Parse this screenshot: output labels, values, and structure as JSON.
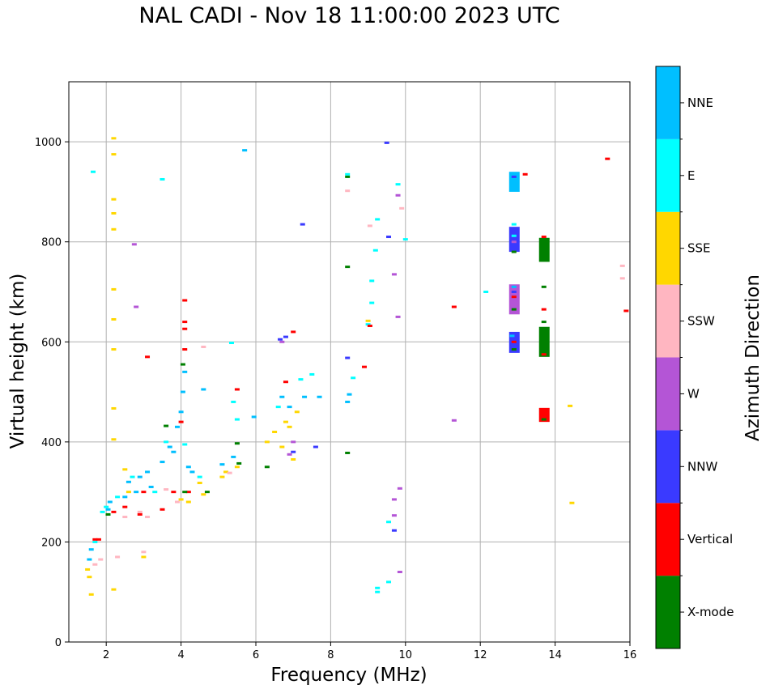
{
  "chart_data": {
    "type": "scatter",
    "title": "NAL CADI - Nov 18 11:00:00 2023 UTC",
    "xlabel": "Frequency (MHz)",
    "ylabel": "Virtual height (km)",
    "xlim": [
      1,
      16
    ],
    "ylim": [
      0,
      1120
    ],
    "xticks": [
      2,
      4,
      6,
      8,
      10,
      12,
      14,
      16
    ],
    "yticks": [
      0,
      200,
      400,
      600,
      800,
      1000
    ],
    "grid": true,
    "colorbar": {
      "title": "Azimuth Direction",
      "categories": [
        {
          "name": "X-mode",
          "color": "#008000"
        },
        {
          "name": "Vertical",
          "color": "#ff0000"
        },
        {
          "name": "NNW",
          "color": "#3a3aff"
        },
        {
          "name": "W",
          "color": "#b455d6"
        },
        {
          "name": "SSW",
          "color": "#ffb6c1"
        },
        {
          "name": "SSE",
          "color": "#ffd700"
        },
        {
          "name": "E",
          "color": "#00ffff"
        },
        {
          "name": "NNE",
          "color": "#00bfff"
        }
      ]
    },
    "series": [
      {
        "name": "NNE",
        "points": [
          [
            1.55,
            165
          ],
          [
            1.6,
            185
          ],
          [
            2.05,
            265
          ],
          [
            2.1,
            280
          ],
          [
            2.5,
            290
          ],
          [
            2.6,
            320
          ],
          [
            2.8,
            300
          ],
          [
            2.9,
            330
          ],
          [
            3.1,
            340
          ],
          [
            3.2,
            310
          ],
          [
            3.5,
            360
          ],
          [
            3.7,
            390
          ],
          [
            3.8,
            380
          ],
          [
            3.9,
            430
          ],
          [
            4.0,
            460
          ],
          [
            4.05,
            500
          ],
          [
            4.1,
            540
          ],
          [
            4.2,
            350
          ],
          [
            4.3,
            340
          ],
          [
            4.6,
            505
          ],
          [
            5.1,
            355
          ],
          [
            5.4,
            370
          ],
          [
            5.7,
            983
          ],
          [
            5.95,
            450
          ],
          [
            6.7,
            490
          ],
          [
            6.9,
            470
          ],
          [
            7.3,
            490
          ],
          [
            7.7,
            490
          ],
          [
            8.45,
            480
          ],
          [
            8.5,
            495
          ],
          [
            12.9,
            920
          ],
          [
            12.9,
            906
          ],
          [
            12.9,
            710
          ],
          [
            12.85,
            612
          ]
        ]
      },
      {
        "name": "E",
        "points": [
          [
            1.65,
            940
          ],
          [
            1.7,
            200
          ],
          [
            1.9,
            260
          ],
          [
            2.0,
            270
          ],
          [
            2.3,
            290
          ],
          [
            2.7,
            330
          ],
          [
            3.3,
            300
          ],
          [
            3.5,
            925
          ],
          [
            3.6,
            400
          ],
          [
            4.1,
            395
          ],
          [
            4.5,
            330
          ],
          [
            5.35,
            598
          ],
          [
            5.4,
            480
          ],
          [
            5.5,
            445
          ],
          [
            6.6,
            470
          ],
          [
            7.2,
            525
          ],
          [
            7.5,
            535
          ],
          [
            8.45,
            935
          ],
          [
            8.6,
            528
          ],
          [
            9.0,
            635
          ],
          [
            9.1,
            722
          ],
          [
            9.1,
            678
          ],
          [
            9.2,
            783
          ],
          [
            9.25,
            845
          ],
          [
            9.25,
            108
          ],
          [
            9.25,
            100
          ],
          [
            9.55,
            240
          ],
          [
            9.55,
            120
          ],
          [
            9.8,
            915
          ],
          [
            10.0,
            805
          ],
          [
            12.15,
            700
          ],
          [
            12.9,
            835
          ],
          [
            12.9,
            812
          ]
        ]
      },
      {
        "name": "SSE",
        "points": [
          [
            1.5,
            145
          ],
          [
            1.55,
            130
          ],
          [
            1.6,
            95
          ],
          [
            2.2,
            1007
          ],
          [
            2.2,
            975
          ],
          [
            2.2,
            885
          ],
          [
            2.2,
            857
          ],
          [
            2.2,
            825
          ],
          [
            2.2,
            705
          ],
          [
            2.2,
            645
          ],
          [
            2.2,
            585
          ],
          [
            2.2,
            467
          ],
          [
            2.2,
            405
          ],
          [
            2.2,
            105
          ],
          [
            2.5,
            345
          ],
          [
            2.6,
            300
          ],
          [
            3.0,
            170
          ],
          [
            4.0,
            285
          ],
          [
            4.2,
            280
          ],
          [
            4.5,
            318
          ],
          [
            4.6,
            295
          ],
          [
            5.1,
            330
          ],
          [
            5.2,
            340
          ],
          [
            5.5,
            350
          ],
          [
            6.3,
            400
          ],
          [
            6.5,
            420
          ],
          [
            6.7,
            390
          ],
          [
            6.8,
            440
          ],
          [
            6.9,
            430
          ],
          [
            7.0,
            365
          ],
          [
            7.1,
            460
          ],
          [
            9.0,
            642
          ],
          [
            14.4,
            472
          ],
          [
            14.45,
            278
          ]
        ]
      },
      {
        "name": "SSW",
        "points": [
          [
            1.7,
            155
          ],
          [
            1.85,
            165
          ],
          [
            2.3,
            170
          ],
          [
            2.5,
            250
          ],
          [
            2.9,
            260
          ],
          [
            3.0,
            180
          ],
          [
            3.1,
            250
          ],
          [
            3.6,
            305
          ],
          [
            3.9,
            280
          ],
          [
            4.6,
            590
          ],
          [
            5.3,
            338
          ],
          [
            8.45,
            902
          ],
          [
            9.05,
            832
          ],
          [
            9.9,
            867
          ],
          [
            15.8,
            752
          ],
          [
            15.8,
            727
          ]
        ]
      },
      {
        "name": "W",
        "points": [
          [
            2.75,
            795
          ],
          [
            2.8,
            670
          ],
          [
            6.9,
            375
          ],
          [
            6.7,
            600
          ],
          [
            7.0,
            400
          ],
          [
            9.7,
            735
          ],
          [
            9.7,
            285
          ],
          [
            9.7,
            253
          ],
          [
            9.8,
            893
          ],
          [
            9.8,
            650
          ],
          [
            9.85,
            307
          ],
          [
            9.85,
            140
          ],
          [
            11.3,
            443
          ],
          [
            12.9,
            700
          ],
          [
            12.9,
            685
          ],
          [
            12.9,
            800
          ]
        ]
      },
      {
        "name": "NNW",
        "points": [
          [
            6.65,
            605
          ],
          [
            6.8,
            610
          ],
          [
            7.0,
            380
          ],
          [
            7.25,
            835
          ],
          [
            7.6,
            390
          ],
          [
            8.45,
            568
          ],
          [
            9.5,
            998
          ],
          [
            9.55,
            810
          ],
          [
            9.7,
            223
          ],
          [
            12.9,
            930
          ],
          [
            12.9,
            700
          ],
          [
            12.9,
            595
          ],
          [
            12.9,
            820
          ]
        ]
      },
      {
        "name": "Vertical",
        "points": [
          [
            1.7,
            205
          ],
          [
            1.8,
            205
          ],
          [
            2.2,
            260
          ],
          [
            2.5,
            270
          ],
          [
            2.9,
            255
          ],
          [
            3.0,
            300
          ],
          [
            3.1,
            570
          ],
          [
            3.5,
            265
          ],
          [
            3.8,
            300
          ],
          [
            4.1,
            683
          ],
          [
            4.1,
            640
          ],
          [
            4.1,
            626
          ],
          [
            4.1,
            585
          ],
          [
            4.0,
            440
          ],
          [
            4.2,
            300
          ],
          [
            5.5,
            505
          ],
          [
            6.8,
            520
          ],
          [
            7.0,
            620
          ],
          [
            8.9,
            550
          ],
          [
            9.05,
            632
          ],
          [
            11.3,
            670
          ],
          [
            12.9,
            690
          ],
          [
            12.9,
            600
          ],
          [
            13.2,
            935
          ],
          [
            13.7,
            810
          ],
          [
            13.7,
            665
          ],
          [
            13.7,
            575
          ],
          [
            13.7,
            460
          ],
          [
            15.4,
            966
          ],
          [
            15.9,
            662
          ]
        ]
      },
      {
        "name": "X-mode",
        "points": [
          [
            2.05,
            255
          ],
          [
            3.6,
            432
          ],
          [
            4.1,
            300
          ],
          [
            4.05,
            555
          ],
          [
            4.7,
            300
          ],
          [
            5.55,
            357
          ],
          [
            5.5,
            397
          ],
          [
            6.3,
            350
          ],
          [
            8.45,
            930
          ],
          [
            8.45,
            750
          ],
          [
            8.45,
            378
          ],
          [
            12.9,
            780
          ],
          [
            12.9,
            665
          ],
          [
            12.9,
            585
          ],
          [
            13.7,
            780
          ],
          [
            13.7,
            710
          ],
          [
            13.7,
            640
          ],
          [
            13.7,
            600
          ],
          [
            13.7,
            445
          ]
        ]
      }
    ],
    "vertical_bands": [
      {
        "name": "NNE",
        "x": 12.9,
        "y0": 900,
        "y1": 940
      },
      {
        "name": "NNW",
        "x": 12.9,
        "y0": 780,
        "y1": 830
      },
      {
        "name": "W",
        "x": 12.9,
        "y0": 655,
        "y1": 715
      },
      {
        "name": "NNW",
        "x": 12.9,
        "y0": 578,
        "y1": 620
      },
      {
        "name": "X-mode",
        "x": 13.7,
        "y0": 760,
        "y1": 808
      },
      {
        "name": "X-mode",
        "x": 13.7,
        "y0": 570,
        "y1": 630
      },
      {
        "name": "Vertical",
        "x": 13.7,
        "y0": 440,
        "y1": 468
      }
    ]
  }
}
